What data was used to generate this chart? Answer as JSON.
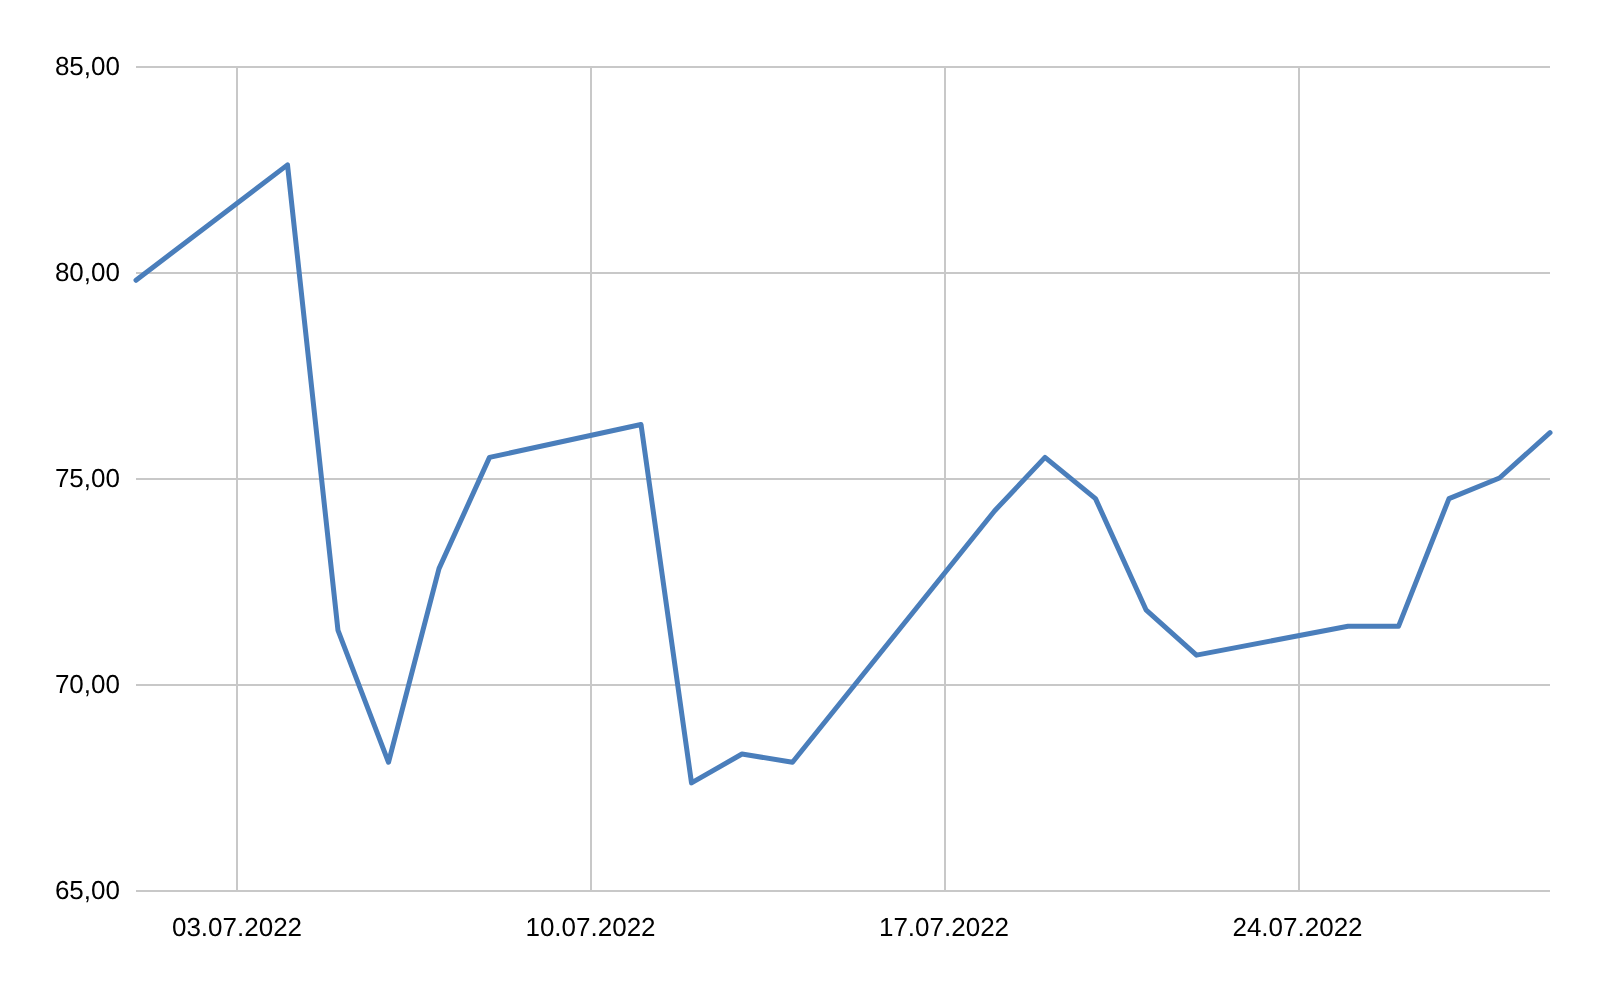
{
  "chart_data": {
    "type": "line",
    "x": [
      "2022-07-01",
      "2022-07-04",
      "2022-07-05",
      "2022-07-06",
      "2022-07-07",
      "2022-07-08",
      "2022-07-11",
      "2022-07-12",
      "2022-07-13",
      "2022-07-14",
      "2022-07-18",
      "2022-07-19",
      "2022-07-20",
      "2022-07-21",
      "2022-07-22",
      "2022-07-25",
      "2022-07-26",
      "2022-07-27",
      "2022-07-28",
      "2022-07-29"
    ],
    "series": [
      {
        "color": "#4a7ebb",
        "values": [
          79.8,
          82.6,
          71.3,
          68.1,
          72.8,
          75.5,
          76.3,
          67.6,
          68.3,
          68.1,
          74.2,
          75.5,
          74.5,
          71.8,
          70.7,
          71.4,
          71.4,
          74.5,
          75.0,
          76.1
        ]
      }
    ],
    "xlim": [
      "2022-07-01",
      "2022-07-29"
    ],
    "xticks": [
      {
        "value": "2022-07-03",
        "label": "03.07.2022"
      },
      {
        "value": "2022-07-10",
        "label": "10.07.2022"
      },
      {
        "value": "2022-07-17",
        "label": "17.07.2022"
      },
      {
        "value": "2022-07-24",
        "label": "24.07.2022"
      }
    ],
    "ylim": [
      65,
      85
    ],
    "yticks": [
      {
        "value": 65,
        "label": "65,00"
      },
      {
        "value": 70,
        "label": "70,00"
      },
      {
        "value": 75,
        "label": "75,00"
      },
      {
        "value": 80,
        "label": "80,00"
      },
      {
        "value": 85,
        "label": "85,00"
      }
    ],
    "grid": true,
    "marker": "none",
    "line_style": "solid"
  }
}
